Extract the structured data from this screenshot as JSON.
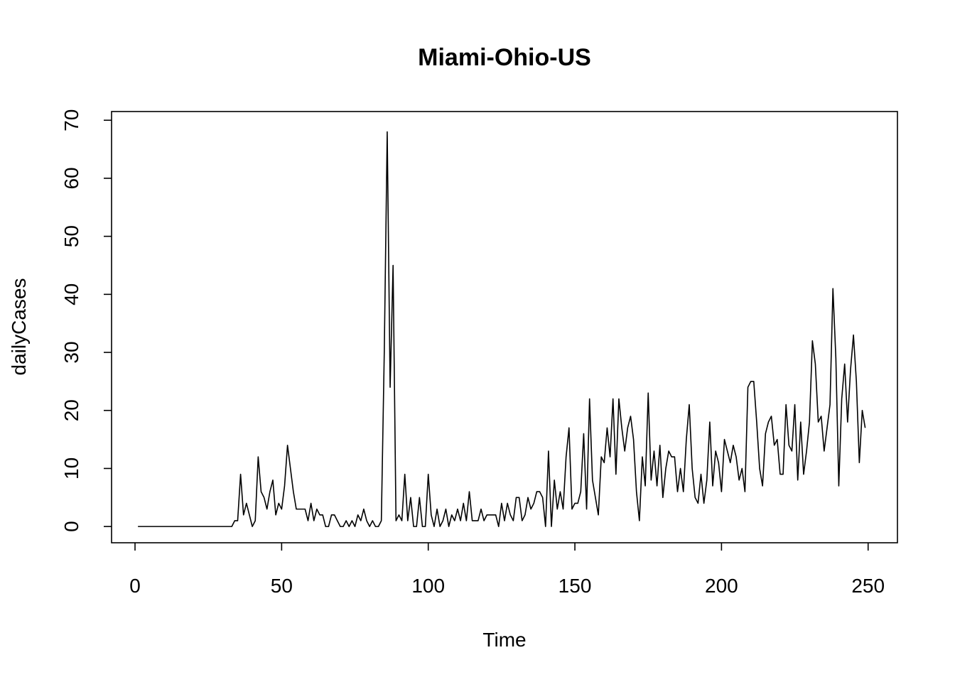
{
  "chart_data": {
    "type": "line",
    "title": "Miami-Ohio-US",
    "xlabel": "Time",
    "ylabel": "dailyCases",
    "xlim": [
      -8,
      260
    ],
    "ylim": [
      -2.8,
      71.5
    ],
    "xticks": [
      0,
      50,
      100,
      150,
      200,
      250
    ],
    "yticks": [
      0,
      10,
      20,
      30,
      40,
      50,
      60,
      70
    ],
    "grid": false,
    "legend": "none",
    "series": [
      {
        "x_start": 1,
        "values": [
          0,
          0,
          0,
          0,
          0,
          0,
          0,
          0,
          0,
          0,
          0,
          0,
          0,
          0,
          0,
          0,
          0,
          0,
          0,
          0,
          0,
          0,
          0,
          0,
          0,
          0,
          0,
          0,
          0,
          0,
          0,
          0,
          0,
          1,
          1,
          9,
          2,
          4,
          2,
          0,
          1,
          12,
          6,
          5,
          3,
          6,
          8,
          2,
          4,
          3,
          7,
          14,
          10,
          6,
          3,
          3,
          3,
          3,
          1,
          4,
          1,
          3,
          2,
          2,
          0,
          0,
          2,
          2,
          1,
          0,
          0,
          1,
          0,
          1,
          0,
          2,
          1,
          3,
          1,
          0,
          1,
          0,
          0,
          1,
          30,
          68,
          24,
          45,
          1,
          2,
          1,
          9,
          1,
          5,
          0,
          0,
          5,
          0,
          0,
          9,
          2,
          0,
          3,
          0,
          1,
          3,
          0,
          2,
          1,
          3,
          1,
          4,
          1,
          6,
          1,
          1,
          1,
          3,
          1,
          2,
          2,
          2,
          2,
          0,
          4,
          1,
          4,
          2,
          1,
          5,
          5,
          1,
          2,
          5,
          3,
          4,
          6,
          6,
          5,
          0,
          13,
          0,
          8,
          3,
          6,
          3,
          12,
          17,
          3,
          4,
          4,
          6,
          16,
          3,
          22,
          8,
          5,
          2,
          12,
          11,
          17,
          12,
          22,
          9,
          22,
          17,
          13,
          17,
          19,
          15,
          6,
          1,
          12,
          7,
          23,
          8,
          13,
          7,
          14,
          5,
          10,
          13,
          12,
          12,
          6,
          10,
          6,
          15,
          21,
          10,
          5,
          4,
          9,
          4,
          8,
          18,
          7,
          13,
          11,
          6,
          15,
          13,
          11,
          14,
          12,
          8,
          10,
          6,
          24,
          25,
          25,
          18,
          10,
          7,
          16,
          18,
          19,
          14,
          15,
          9,
          9,
          21,
          14,
          13,
          21,
          8,
          18,
          9,
          13,
          18,
          32,
          28,
          18,
          19,
          13,
          17,
          21,
          41,
          29,
          7,
          22,
          28,
          18,
          27,
          33,
          25,
          11,
          20,
          17
        ]
      }
    ]
  }
}
